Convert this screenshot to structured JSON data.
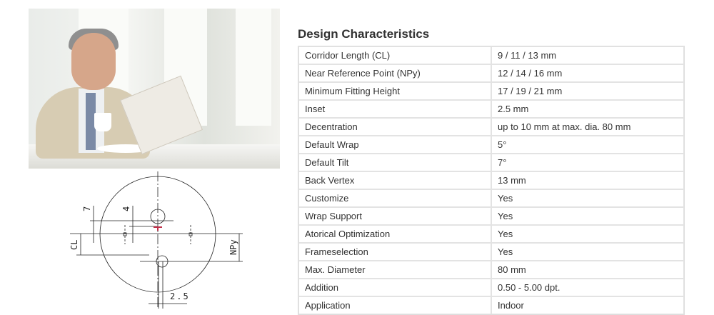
{
  "title": "Design Characteristics",
  "rows": [
    {
      "label": "Corridor Length (CL)",
      "value": "9 / 11 / 13 mm"
    },
    {
      "label": "Near Reference Point (NPy)",
      "value": "12 / 14 / 16 mm"
    },
    {
      "label": "Minimum Fitting Height",
      "value": "17 / 19 / 21 mm"
    },
    {
      "label": "Inset",
      "value": "2.5 mm"
    },
    {
      "label": "Decentration",
      "value": "up to 10 mm at max. dia. 80 mm"
    },
    {
      "label": "Default Wrap",
      "value": "5°"
    },
    {
      "label": "Default Tilt",
      "value": "7°"
    },
    {
      "label": "Back Vertex",
      "value": "13 mm"
    },
    {
      "label": "Customize",
      "value": "Yes"
    },
    {
      "label": "Wrap Support",
      "value": "Yes"
    },
    {
      "label": "Atorical Optimization",
      "value": "Yes"
    },
    {
      "label": "Frameselection",
      "value": "Yes"
    },
    {
      "label": "Max. Diameter",
      "value": "80 mm"
    },
    {
      "label": "Addition",
      "value": "0.50 - 5.00 dpt."
    },
    {
      "label": "Application",
      "value": "Indoor"
    }
  ],
  "diagram": {
    "label_7": "7",
    "label_4": "4",
    "label_cl": "CL",
    "label_npy": "NPy",
    "label_inset": "2.5",
    "marker_color": "#c0304a"
  }
}
